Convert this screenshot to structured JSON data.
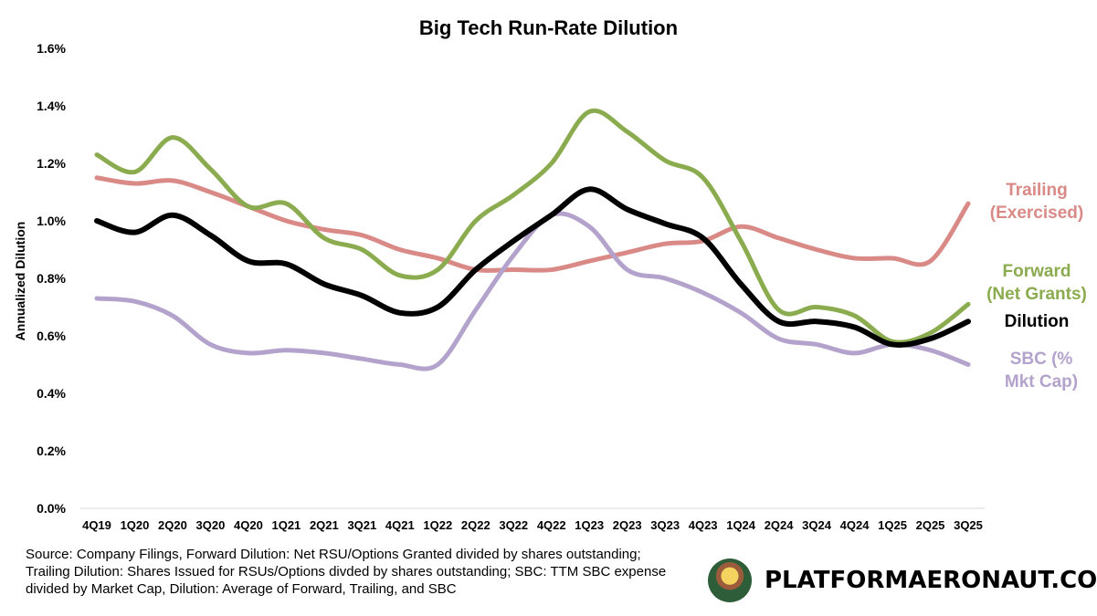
{
  "chart_data": {
    "type": "line",
    "title": "Big Tech Run-Rate Dilution",
    "xlabel": "",
    "ylabel": "Annualized Dilution",
    "ylim": [
      0,
      1.6
    ],
    "yticks": [
      "0.0%",
      "0.2%",
      "0.4%",
      "0.6%",
      "0.8%",
      "1.0%",
      "1.2%",
      "1.4%",
      "1.6%"
    ],
    "grid": false,
    "categories": [
      "4Q19",
      "1Q20",
      "2Q20",
      "3Q20",
      "4Q20",
      "1Q21",
      "2Q21",
      "3Q21",
      "4Q21",
      "1Q22",
      "2Q22",
      "3Q22",
      "4Q22",
      "1Q23",
      "2Q23",
      "3Q23",
      "4Q23",
      "1Q24",
      "2Q24",
      "3Q24",
      "4Q24",
      "1Q25",
      "2Q25",
      "3Q25"
    ],
    "series": [
      {
        "name": "Trailing (Exercised)",
        "label_lines": [
          "Trailing",
          "(Exercised)"
        ],
        "color": "#d98a86",
        "width": 5,
        "values": [
          1.15,
          1.13,
          1.14,
          1.1,
          1.05,
          1.0,
          0.97,
          0.95,
          0.9,
          0.87,
          0.83,
          0.83,
          0.83,
          0.86,
          0.89,
          0.92,
          0.93,
          0.98,
          0.94,
          0.9,
          0.87,
          0.87,
          0.86,
          1.06
        ]
      },
      {
        "name": "Forward (Net Grants)",
        "label_lines": [
          "Forward",
          "(Net Grants)"
        ],
        "color": "#8bab4f",
        "width": 5,
        "values": [
          1.23,
          1.17,
          1.29,
          1.18,
          1.05,
          1.06,
          0.94,
          0.9,
          0.81,
          0.83,
          1.0,
          1.09,
          1.2,
          1.38,
          1.31,
          1.21,
          1.15,
          0.93,
          0.69,
          0.7,
          0.67,
          0.58,
          0.61,
          0.71
        ]
      },
      {
        "name": "SBC (% Mkt Cap)",
        "label_lines": [
          "SBC (%",
          "Mkt Cap)"
        ],
        "color": "#b3a3cc",
        "width": 5,
        "values": [
          0.73,
          0.72,
          0.67,
          0.57,
          0.54,
          0.55,
          0.54,
          0.52,
          0.5,
          0.5,
          0.69,
          0.88,
          1.02,
          0.98,
          0.83,
          0.8,
          0.75,
          0.68,
          0.59,
          0.57,
          0.54,
          0.57,
          0.55,
          0.5
        ]
      },
      {
        "name": "Dilution",
        "label_lines": [
          "Dilution"
        ],
        "color": "#000000",
        "width": 6,
        "values": [
          1.0,
          0.96,
          1.02,
          0.95,
          0.86,
          0.85,
          0.78,
          0.74,
          0.68,
          0.7,
          0.83,
          0.93,
          1.02,
          1.11,
          1.04,
          0.99,
          0.94,
          0.78,
          0.65,
          0.65,
          0.63,
          0.57,
          0.59,
          0.65
        ]
      }
    ]
  },
  "source": "Source: Company Filings, Forward Dilution: Net RSU/Options Granted divided by shares outstanding; Trailing Dilution: Shares Issued for RSUs/Options divded by shares outstanding; SBC: TTM SBC expense divided by Market Cap, Dilution: Average of Forward, Trailing, and SBC",
  "brand": "PLATFORMAERONAUT.COM"
}
